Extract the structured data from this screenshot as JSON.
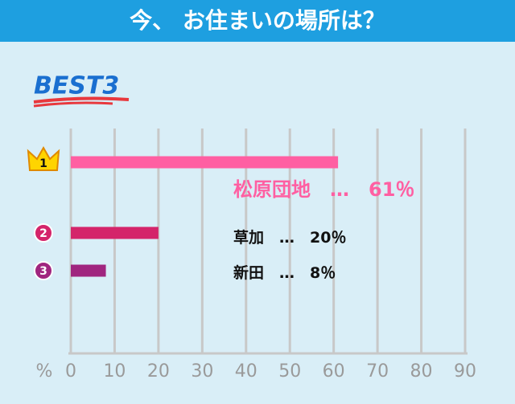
{
  "header": {
    "title": "今、 お住まいの場所は？"
  },
  "badge": "BEST3",
  "chart_data": {
    "type": "hbar",
    "categories": [
      "松原団地",
      "草加",
      "新田"
    ],
    "ranks": [
      "1",
      "2",
      "3"
    ],
    "values": [
      61,
      20,
      8
    ],
    "value_labels": [
      "61％",
      "20％",
      "8％"
    ],
    "label_separator": "…",
    "colors": [
      "#ff5fa2",
      "#d4246a",
      "#a0257f"
    ],
    "label_colors": [
      "#ff5fa2",
      "#111111",
      "#111111"
    ],
    "x_label": "%",
    "xlim": [
      0,
      90
    ],
    "xticks": [
      0,
      10,
      20,
      30,
      40,
      50,
      60,
      70,
      80,
      90
    ],
    "grid": true
  }
}
